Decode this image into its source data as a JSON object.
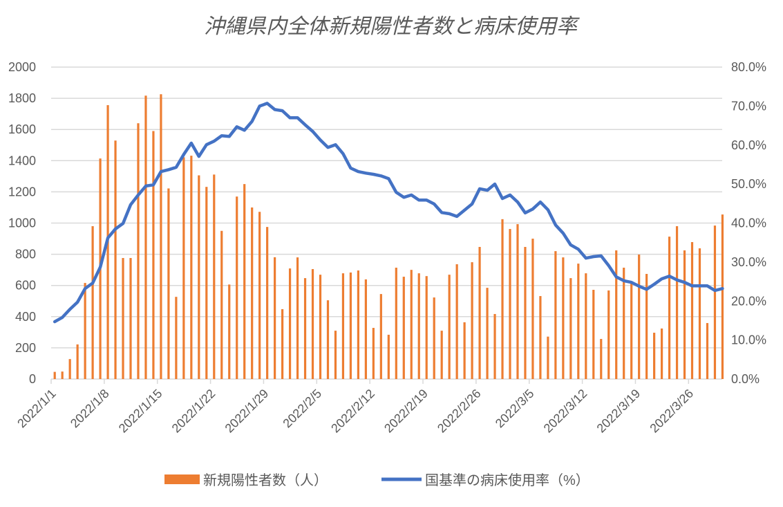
{
  "chart_data": {
    "type": "bar+line",
    "title": "沖縄県内全体新規陽性者数と病床使用率",
    "start_date": "2022-01-01",
    "x_tick_labels": [
      "2022/1/1",
      "2022/1/8",
      "2022/1/15",
      "2022/1/22",
      "2022/1/29",
      "2022/2/5",
      "2022/2/12",
      "2022/2/19",
      "2022/2/26",
      "2022/3/5",
      "2022/3/12",
      "2022/3/19",
      "2022/3/26"
    ],
    "y_left": {
      "range": [
        0,
        2000
      ],
      "ticks": [
        "0",
        "200",
        "400",
        "600",
        "800",
        "1000",
        "1200",
        "1400",
        "1600",
        "1800",
        "2000"
      ]
    },
    "y_right": {
      "range": [
        0,
        80
      ],
      "ticks": [
        "0.0%",
        "10.0%",
        "20.0%",
        "30.0%",
        "40.0%",
        "50.0%",
        "60.0%",
        "70.0%",
        "80.0%"
      ]
    },
    "grid": true,
    "legend_position": "bottom",
    "colors": {
      "bars": "#ED7D31",
      "line": "#4472C4",
      "grid": "#D9D9D9",
      "text": "#595959"
    },
    "series": [
      {
        "name": "新規陽性者数（人）",
        "type": "bar",
        "axis": "left",
        "values": [
          46,
          48,
          128,
          222,
          616,
          980,
          1414,
          1756,
          1529,
          776,
          776,
          1640,
          1817,
          1590,
          1826,
          1222,
          527,
          1422,
          1432,
          1306,
          1232,
          1311,
          950,
          606,
          1170,
          1250,
          1100,
          1072,
          975,
          781,
          448,
          709,
          780,
          647,
          705,
          669,
          505,
          310,
          678,
          683,
          696,
          639,
          328,
          545,
          284,
          714,
          656,
          700,
          678,
          660,
          523,
          310,
          669,
          736,
          364,
          749,
          847,
          585,
          417,
          1025,
          962,
          993,
          847,
          900,
          532,
          272,
          820,
          780,
          647,
          740,
          678,
          572,
          257,
          568,
          825,
          714,
          612,
          798,
          674,
          297,
          324,
          913,
          980,
          825,
          878,
          838,
          359,
          984,
          1055
        ]
      },
      {
        "name": "国基準の病床使用率（%）",
        "type": "line",
        "axis": "right",
        "values": [
          14.7,
          15.8,
          17.9,
          19.7,
          23.2,
          24.6,
          28.7,
          36.2,
          38.5,
          39.9,
          44.7,
          47.2,
          49.5,
          49.8,
          53.2,
          53.7,
          54.3,
          57.6,
          60.5,
          57.1,
          60.1,
          61.0,
          62.4,
          62.2,
          64.7,
          63.8,
          66.1,
          70.0,
          70.7,
          69.1,
          68.8,
          67.0,
          67.0,
          65.2,
          63.5,
          61.3,
          59.4,
          60.1,
          57.8,
          54.1,
          53.2,
          52.8,
          52.5,
          52.1,
          51.4,
          47.9,
          46.6,
          47.2,
          45.9,
          45.9,
          44.9,
          42.7,
          42.4,
          41.7,
          43.3,
          44.9,
          48.8,
          48.4,
          50.0,
          46.3,
          47.2,
          45.4,
          42.6,
          43.6,
          45.4,
          43.4,
          39.5,
          37.4,
          34.4,
          33.3,
          31.0,
          31.4,
          31.6,
          29.1,
          26.2,
          25.2,
          24.8,
          23.8,
          23.0,
          24.3,
          25.7,
          26.4,
          25.4,
          24.8,
          23.9,
          23.9,
          23.9,
          22.7,
          23.2
        ]
      }
    ]
  }
}
